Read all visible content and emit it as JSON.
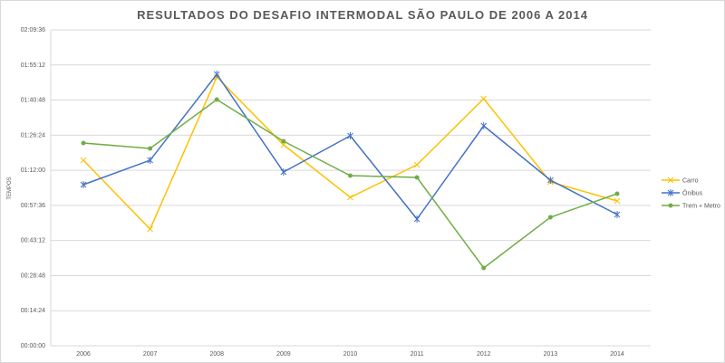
{
  "chart_data": {
    "type": "line",
    "title": "RESULTADOS DO DESAFIO INTERMODAL SÃO PAULO DE 2006 A 2014",
    "xlabel": "",
    "ylabel": "TEMPOS",
    "categories": [
      "2006",
      "2007",
      "2008",
      "2009",
      "2010",
      "2011",
      "2012",
      "2013",
      "2014"
    ],
    "y_unit": "seconds",
    "ylim": [
      0,
      7776
    ],
    "y_ticks": [
      0,
      864,
      1728,
      2592,
      3456,
      4320,
      5184,
      6048,
      6912,
      7776
    ],
    "y_tick_labels": [
      "00:00:00",
      "00:14:24",
      "00:28:48",
      "00:43:12",
      "00:57:36",
      "01:12:00",
      "01:26:24",
      "01:40:48",
      "01:55:12",
      "02:09:36"
    ],
    "grid": true,
    "legend_position": "right",
    "series": [
      {
        "name": "Carro",
        "color": "#FFC000",
        "marker": "x",
        "values": [
          4567,
          2874,
          6617,
          4946,
          3654,
          4456,
          6083,
          4033,
          3565
        ]
      },
      {
        "name": "Ônibus",
        "color": "#4472C4",
        "marker": "star",
        "values": [
          3966,
          4567,
          6684,
          4278,
          5169,
          3119,
          5414,
          4077,
          3231
        ]
      },
      {
        "name": "Trem + Metro",
        "color": "#70AD47",
        "marker": "circle",
        "values": [
          4991,
          4857,
          6060,
          5035,
          4189,
          4144,
          1916,
          3164,
          3743
        ]
      }
    ]
  }
}
